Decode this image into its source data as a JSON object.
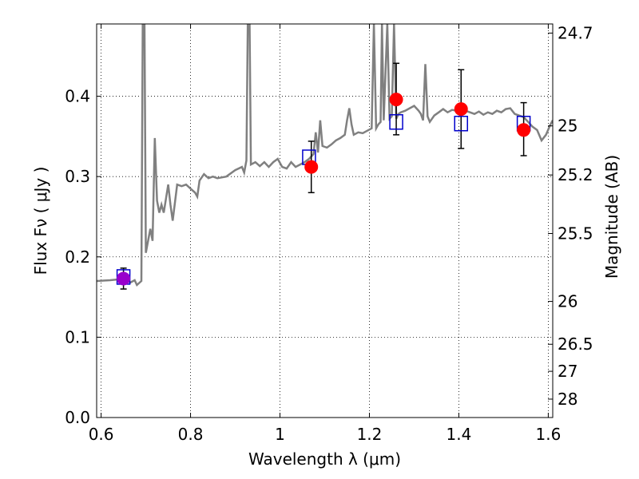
{
  "chart_data": {
    "type": "scatter",
    "title": "",
    "xlabel": "Wavelength  λ (μm)",
    "ylabel": "Flux  Fν  ( μJy )",
    "ylabel_right": "Magnitude (AB)",
    "xlim": [
      0.59,
      1.61
    ],
    "ylim": [
      0.0,
      0.49
    ],
    "grid": true,
    "x_ticks": [
      0.6,
      0.8,
      1.0,
      1.2,
      1.4,
      1.6
    ],
    "x_tick_labels": [
      "0.6",
      "0.8",
      "1",
      "1.2",
      "1.4",
      "1.6"
    ],
    "y_ticks": [
      0.0,
      0.1,
      0.2,
      0.3,
      0.4
    ],
    "y_tick_labels": [
      "0.0",
      "0.1",
      "0.2",
      "0.3",
      "0.4"
    ],
    "mag_ticks": [
      24.7,
      25,
      25.2,
      25.5,
      26,
      26.5,
      27,
      28
    ],
    "mag_tick_labels": [
      "24.7",
      "25",
      "25.2",
      "25.5",
      "26",
      "26.5",
      "27",
      "28"
    ],
    "series": [
      {
        "kind": "line",
        "color": "#808080",
        "points": [
          [
            0.59,
            0.17
          ],
          [
            0.62,
            0.171
          ],
          [
            0.64,
            0.172
          ],
          [
            0.655,
            0.173
          ],
          [
            0.665,
            0.168
          ],
          [
            0.675,
            0.171
          ],
          [
            0.68,
            0.165
          ],
          [
            0.69,
            0.17
          ],
          [
            0.693,
            0.49
          ],
          [
            0.697,
            0.49
          ],
          [
            0.7,
            0.205
          ],
          [
            0.71,
            0.235
          ],
          [
            0.715,
            0.22
          ],
          [
            0.72,
            0.348
          ],
          [
            0.725,
            0.27
          ],
          [
            0.73,
            0.255
          ],
          [
            0.735,
            0.265
          ],
          [
            0.74,
            0.255
          ],
          [
            0.75,
            0.29
          ],
          [
            0.755,
            0.265
          ],
          [
            0.76,
            0.245
          ],
          [
            0.77,
            0.29
          ],
          [
            0.78,
            0.288
          ],
          [
            0.79,
            0.29
          ],
          [
            0.8,
            0.285
          ],
          [
            0.81,
            0.28
          ],
          [
            0.815,
            0.275
          ],
          [
            0.82,
            0.295
          ],
          [
            0.83,
            0.303
          ],
          [
            0.84,
            0.298
          ],
          [
            0.85,
            0.3
          ],
          [
            0.86,
            0.298
          ],
          [
            0.88,
            0.3
          ],
          [
            0.9,
            0.308
          ],
          [
            0.915,
            0.312
          ],
          [
            0.92,
            0.305
          ],
          [
            0.925,
            0.32
          ],
          [
            0.928,
            0.49
          ],
          [
            0.932,
            0.49
          ],
          [
            0.935,
            0.315
          ],
          [
            0.945,
            0.318
          ],
          [
            0.955,
            0.313
          ],
          [
            0.965,
            0.318
          ],
          [
            0.975,
            0.312
          ],
          [
            0.985,
            0.318
          ],
          [
            0.995,
            0.322
          ],
          [
            1.005,
            0.312
          ],
          [
            1.015,
            0.31
          ],
          [
            1.025,
            0.318
          ],
          [
            1.035,
            0.312
          ],
          [
            1.045,
            0.315
          ],
          [
            1.055,
            0.318
          ],
          [
            1.065,
            0.322
          ],
          [
            1.075,
            0.328
          ],
          [
            1.08,
            0.355
          ],
          [
            1.085,
            0.33
          ],
          [
            1.09,
            0.37
          ],
          [
            1.095,
            0.338
          ],
          [
            1.105,
            0.336
          ],
          [
            1.115,
            0.34
          ],
          [
            1.125,
            0.345
          ],
          [
            1.135,
            0.348
          ],
          [
            1.145,
            0.352
          ],
          [
            1.15,
            0.37
          ],
          [
            1.155,
            0.385
          ],
          [
            1.16,
            0.365
          ],
          [
            1.165,
            0.352
          ],
          [
            1.175,
            0.355
          ],
          [
            1.185,
            0.354
          ],
          [
            1.195,
            0.357
          ],
          [
            1.205,
            0.36
          ],
          [
            1.21,
            0.49
          ],
          [
            1.215,
            0.36
          ],
          [
            1.22,
            0.365
          ],
          [
            1.225,
            0.368
          ],
          [
            1.228,
            0.49
          ],
          [
            1.232,
            0.37
          ],
          [
            1.24,
            0.49
          ],
          [
            1.245,
            0.372
          ],
          [
            1.25,
            0.375
          ],
          [
            1.255,
            0.49
          ],
          [
            1.26,
            0.372
          ],
          [
            1.265,
            0.378
          ],
          [
            1.27,
            0.38
          ],
          [
            1.28,
            0.382
          ],
          [
            1.29,
            0.385
          ],
          [
            1.3,
            0.388
          ],
          [
            1.31,
            0.382
          ],
          [
            1.315,
            0.378
          ],
          [
            1.32,
            0.37
          ],
          [
            1.325,
            0.44
          ],
          [
            1.33,
            0.375
          ],
          [
            1.335,
            0.368
          ],
          [
            1.345,
            0.376
          ],
          [
            1.355,
            0.38
          ],
          [
            1.365,
            0.384
          ],
          [
            1.375,
            0.38
          ],
          [
            1.385,
            0.383
          ],
          [
            1.395,
            0.382
          ],
          [
            1.405,
            0.379
          ],
          [
            1.415,
            0.382
          ],
          [
            1.425,
            0.38
          ],
          [
            1.435,
            0.378
          ],
          [
            1.445,
            0.381
          ],
          [
            1.455,
            0.377
          ],
          [
            1.465,
            0.38
          ],
          [
            1.475,
            0.378
          ],
          [
            1.485,
            0.382
          ],
          [
            1.495,
            0.38
          ],
          [
            1.505,
            0.384
          ],
          [
            1.515,
            0.385
          ],
          [
            1.525,
            0.378
          ],
          [
            1.535,
            0.376
          ],
          [
            1.545,
            0.374
          ],
          [
            1.555,
            0.368
          ],
          [
            1.565,
            0.362
          ],
          [
            1.575,
            0.358
          ],
          [
            1.585,
            0.345
          ],
          [
            1.595,
            0.352
          ],
          [
            1.605,
            0.365
          ],
          [
            1.61,
            0.37
          ]
        ]
      },
      {
        "kind": "open-square",
        "color": "#0000cc",
        "x": [
          0.65,
          1.065,
          1.26,
          1.405,
          1.545
        ],
        "y": [
          0.175,
          0.324,
          0.368,
          0.366,
          0.366
        ]
      },
      {
        "kind": "filled-circle",
        "color": "#ff0000",
        "x": [
          0.65,
          1.07,
          1.26,
          1.405,
          1.545
        ],
        "y": [
          0.173,
          0.312,
          0.396,
          0.384,
          0.358
        ],
        "yerr_low": [
          0.16,
          0.28,
          0.352,
          0.335,
          0.326
        ],
        "yerr_high": [
          0.186,
          0.344,
          0.441,
          0.433,
          0.392
        ]
      }
    ],
    "first_point_color": "#9900cc"
  }
}
